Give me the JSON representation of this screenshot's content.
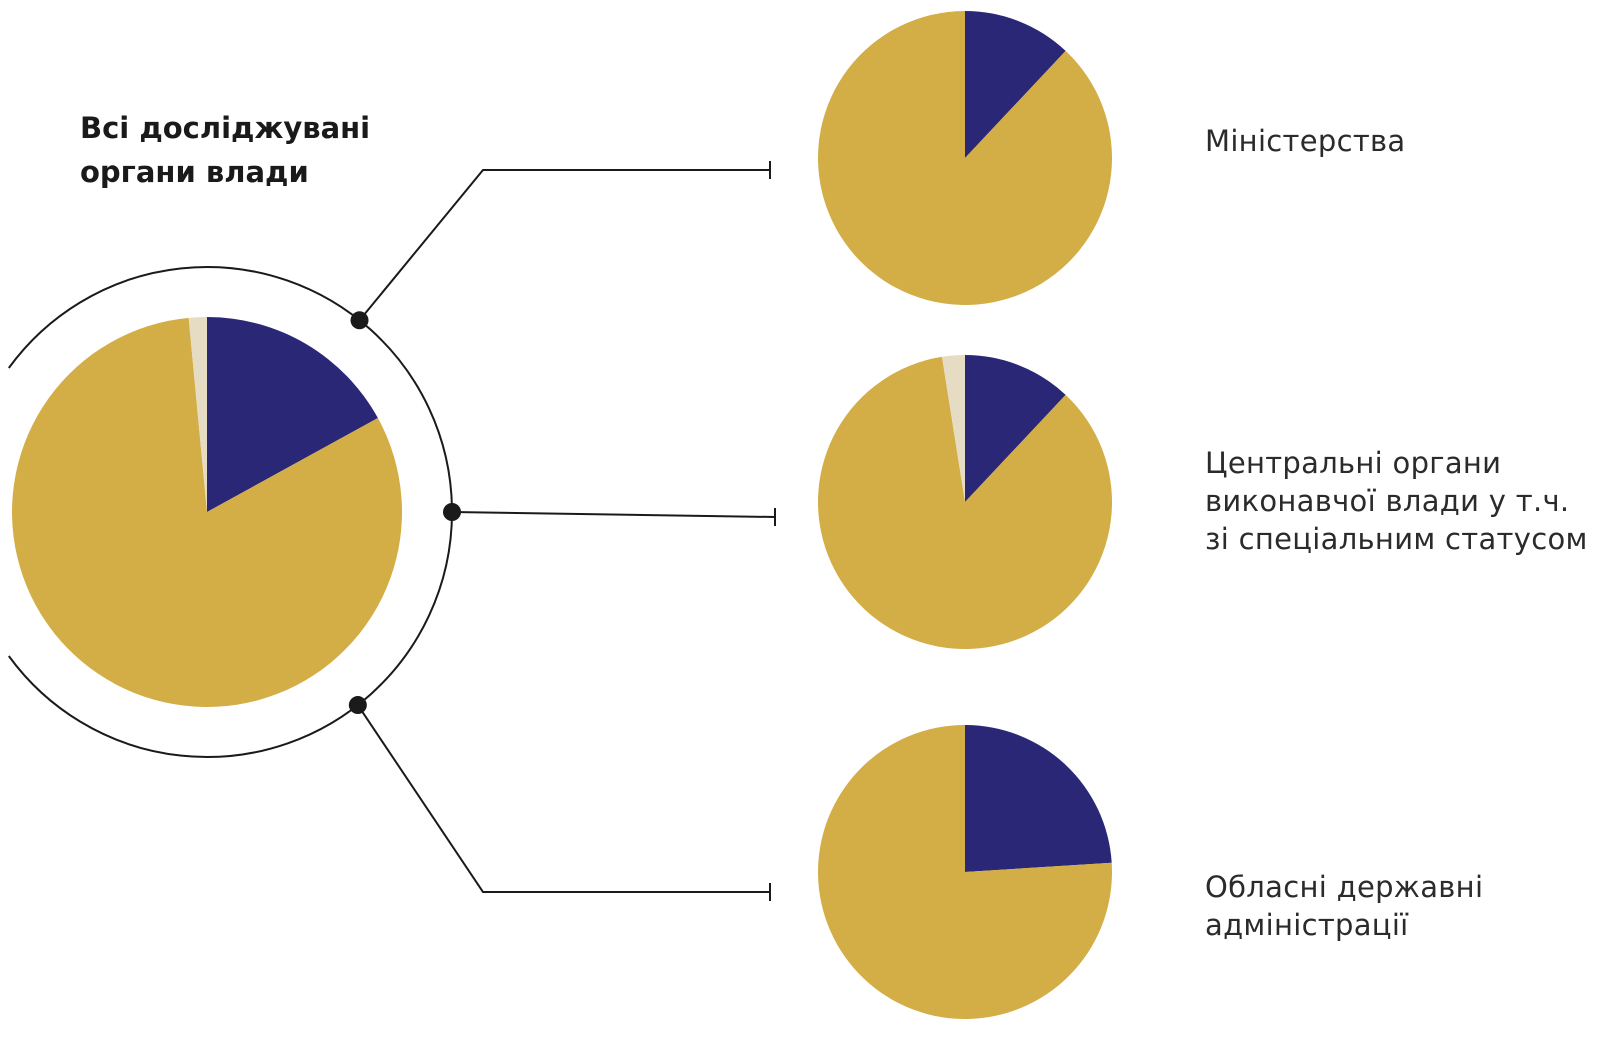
{
  "colors": {
    "series_primary": "#2a2777",
    "series_secondary": "#d3ad46",
    "series_tertiary": "#e6dbc3",
    "connector": "#1a1a1a"
  },
  "chart_data": [
    {
      "type": "pie",
      "title": "Всі досліджувані органи влади",
      "slices": [
        {
          "value": 17,
          "color": "#2a2777"
        },
        {
          "value": 81.5,
          "color": "#d3ad46"
        },
        {
          "value": 1.5,
          "color": "#e6dbc3"
        }
      ]
    },
    {
      "type": "pie",
      "title": "Міністерства",
      "slices": [
        {
          "value": 12,
          "color": "#2a2777"
        },
        {
          "value": 88,
          "color": "#d3ad46"
        }
      ]
    },
    {
      "type": "pie",
      "title": "Центральні органи виконавчої влади у т.ч. зі спеціальним статусом",
      "title_lines": [
        "Центральні органи",
        "виконавчої влади у т.ч.",
        "зі спеціальним статусом"
      ],
      "slices": [
        {
          "value": 12,
          "color": "#2a2777"
        },
        {
          "value": 85.5,
          "color": "#d3ad46"
        },
        {
          "value": 2.5,
          "color": "#e6dbc3"
        }
      ]
    },
    {
      "type": "pie",
      "title": "Обласні державні адміністрації",
      "title_lines": [
        "Обласні державні",
        "адміністрації"
      ],
      "slices": [
        {
          "value": 24,
          "color": "#2a2777"
        },
        {
          "value": 76,
          "color": "#d3ad46"
        }
      ]
    }
  ]
}
